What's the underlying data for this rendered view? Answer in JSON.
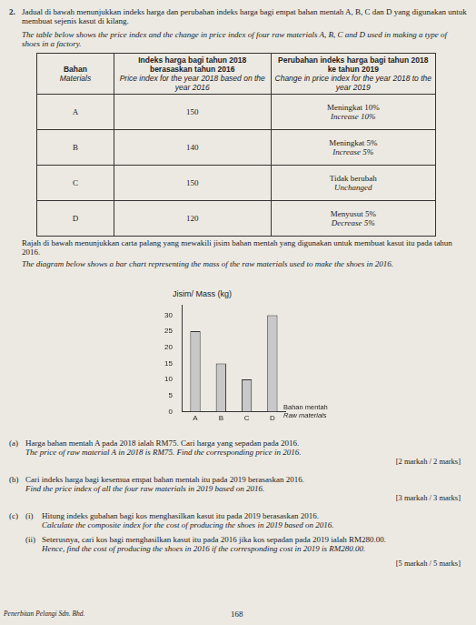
{
  "header": {
    "number": "2.",
    "text_ms": "Jadual di bawah menunjukkan indeks harga dan perubahan indeks harga bagi empat bahan mentah A, B, C dan D yang digunakan untuk membuat sejenis kasut di kilang.",
    "text_en": "The table below shows the price index and the change in price index of four raw materials A, B, C and D used in making a type of shoes in a factory."
  },
  "table": {
    "columns": [
      {
        "ms": "Bahan",
        "en": "Materials"
      },
      {
        "ms": "Indeks harga bagi tahun 2018 berasaskan tahun 2016",
        "en": "Price index for the year 2018 based on the year 2016"
      },
      {
        "ms": "Perubahan indeks harga bagi tahun 2018 ke tahun 2019",
        "en": "Change in price index for the year 2018 to the year 2019"
      }
    ],
    "rows": [
      {
        "material": "A",
        "index": 150,
        "change_ms": "Meningkat 10%",
        "change_en": "Increase 10%"
      },
      {
        "material": "B",
        "index": 140,
        "change_ms": "Meningkat 5%",
        "change_en": "Increase 5%"
      },
      {
        "material": "C",
        "index": 150,
        "change_ms": "Tidak berubah",
        "change_en": "Unchanged"
      },
      {
        "material": "D",
        "index": 120,
        "change_ms": "Menyusut 5%",
        "change_en": "Decrease 5%"
      }
    ]
  },
  "chart_intro": {
    "ms": "Rajah di bawah menunjukkan carta palang yang mewakili jisim bahan mentah yang digunakan untuk membuat kasut itu pada tahun 2016.",
    "en": "The diagram below shows a bar chart representing the mass of the raw materials used to make the shoes in 2016."
  },
  "chart_data": {
    "type": "bar",
    "y_label": "Jisim/ Mass (kg)",
    "x_label_ms": "Bahan mentah",
    "x_label_en": "Raw materials",
    "categories": [
      "A",
      "B",
      "C",
      "D"
    ],
    "values": [
      25,
      15,
      10,
      30
    ],
    "color": "#c8c8c8",
    "ylim": [
      0,
      33
    ],
    "yticks": [
      0,
      5,
      10,
      15,
      20,
      25,
      30
    ],
    "grid": false
  },
  "questions": [
    {
      "label": "(a)",
      "ms": "Harga bahan mentah A pada 2018 ialah RM75. Cari harga yang sepadan pada 2016.",
      "en": "The price of raw material A in 2018 is RM75. Find the corresponding price in 2016.",
      "marks": "[2 markah / 2 marks]"
    },
    {
      "label": "(b)",
      "ms": "Cari indeks harga bagi kesemua empat bahan mentah itu pada 2019 berasaskan 2016.",
      "en": "Find the price index of all the four raw materials in 2019 based on 2016.",
      "marks": "[3 markah / 3 marks]"
    },
    {
      "label": "(c)",
      "parts": [
        {
          "label": "(i)",
          "ms": "Hitung indeks gubahan bagi kos menghasilkan kasut itu pada 2019 berasaskan 2016.",
          "en": "Calculate the composite index for the cost of producing the shoes in 2019 based on 2016."
        },
        {
          "label": "(ii)",
          "ms": "Seterusnya, cari kos bagi menghasilkan kasut itu pada 2016 jika kos sepadan pada 2019 ialah RM280.00.",
          "en": "Hence, find the cost of producing the shoes in 2016 if the corresponding cost in 2019 is RM280.00."
        }
      ],
      "marks": "[5 markah / 5 marks]"
    }
  ],
  "footer": {
    "publisher": "Penerbitan Pelangi Sdn. Bhd.",
    "page": "168"
  }
}
